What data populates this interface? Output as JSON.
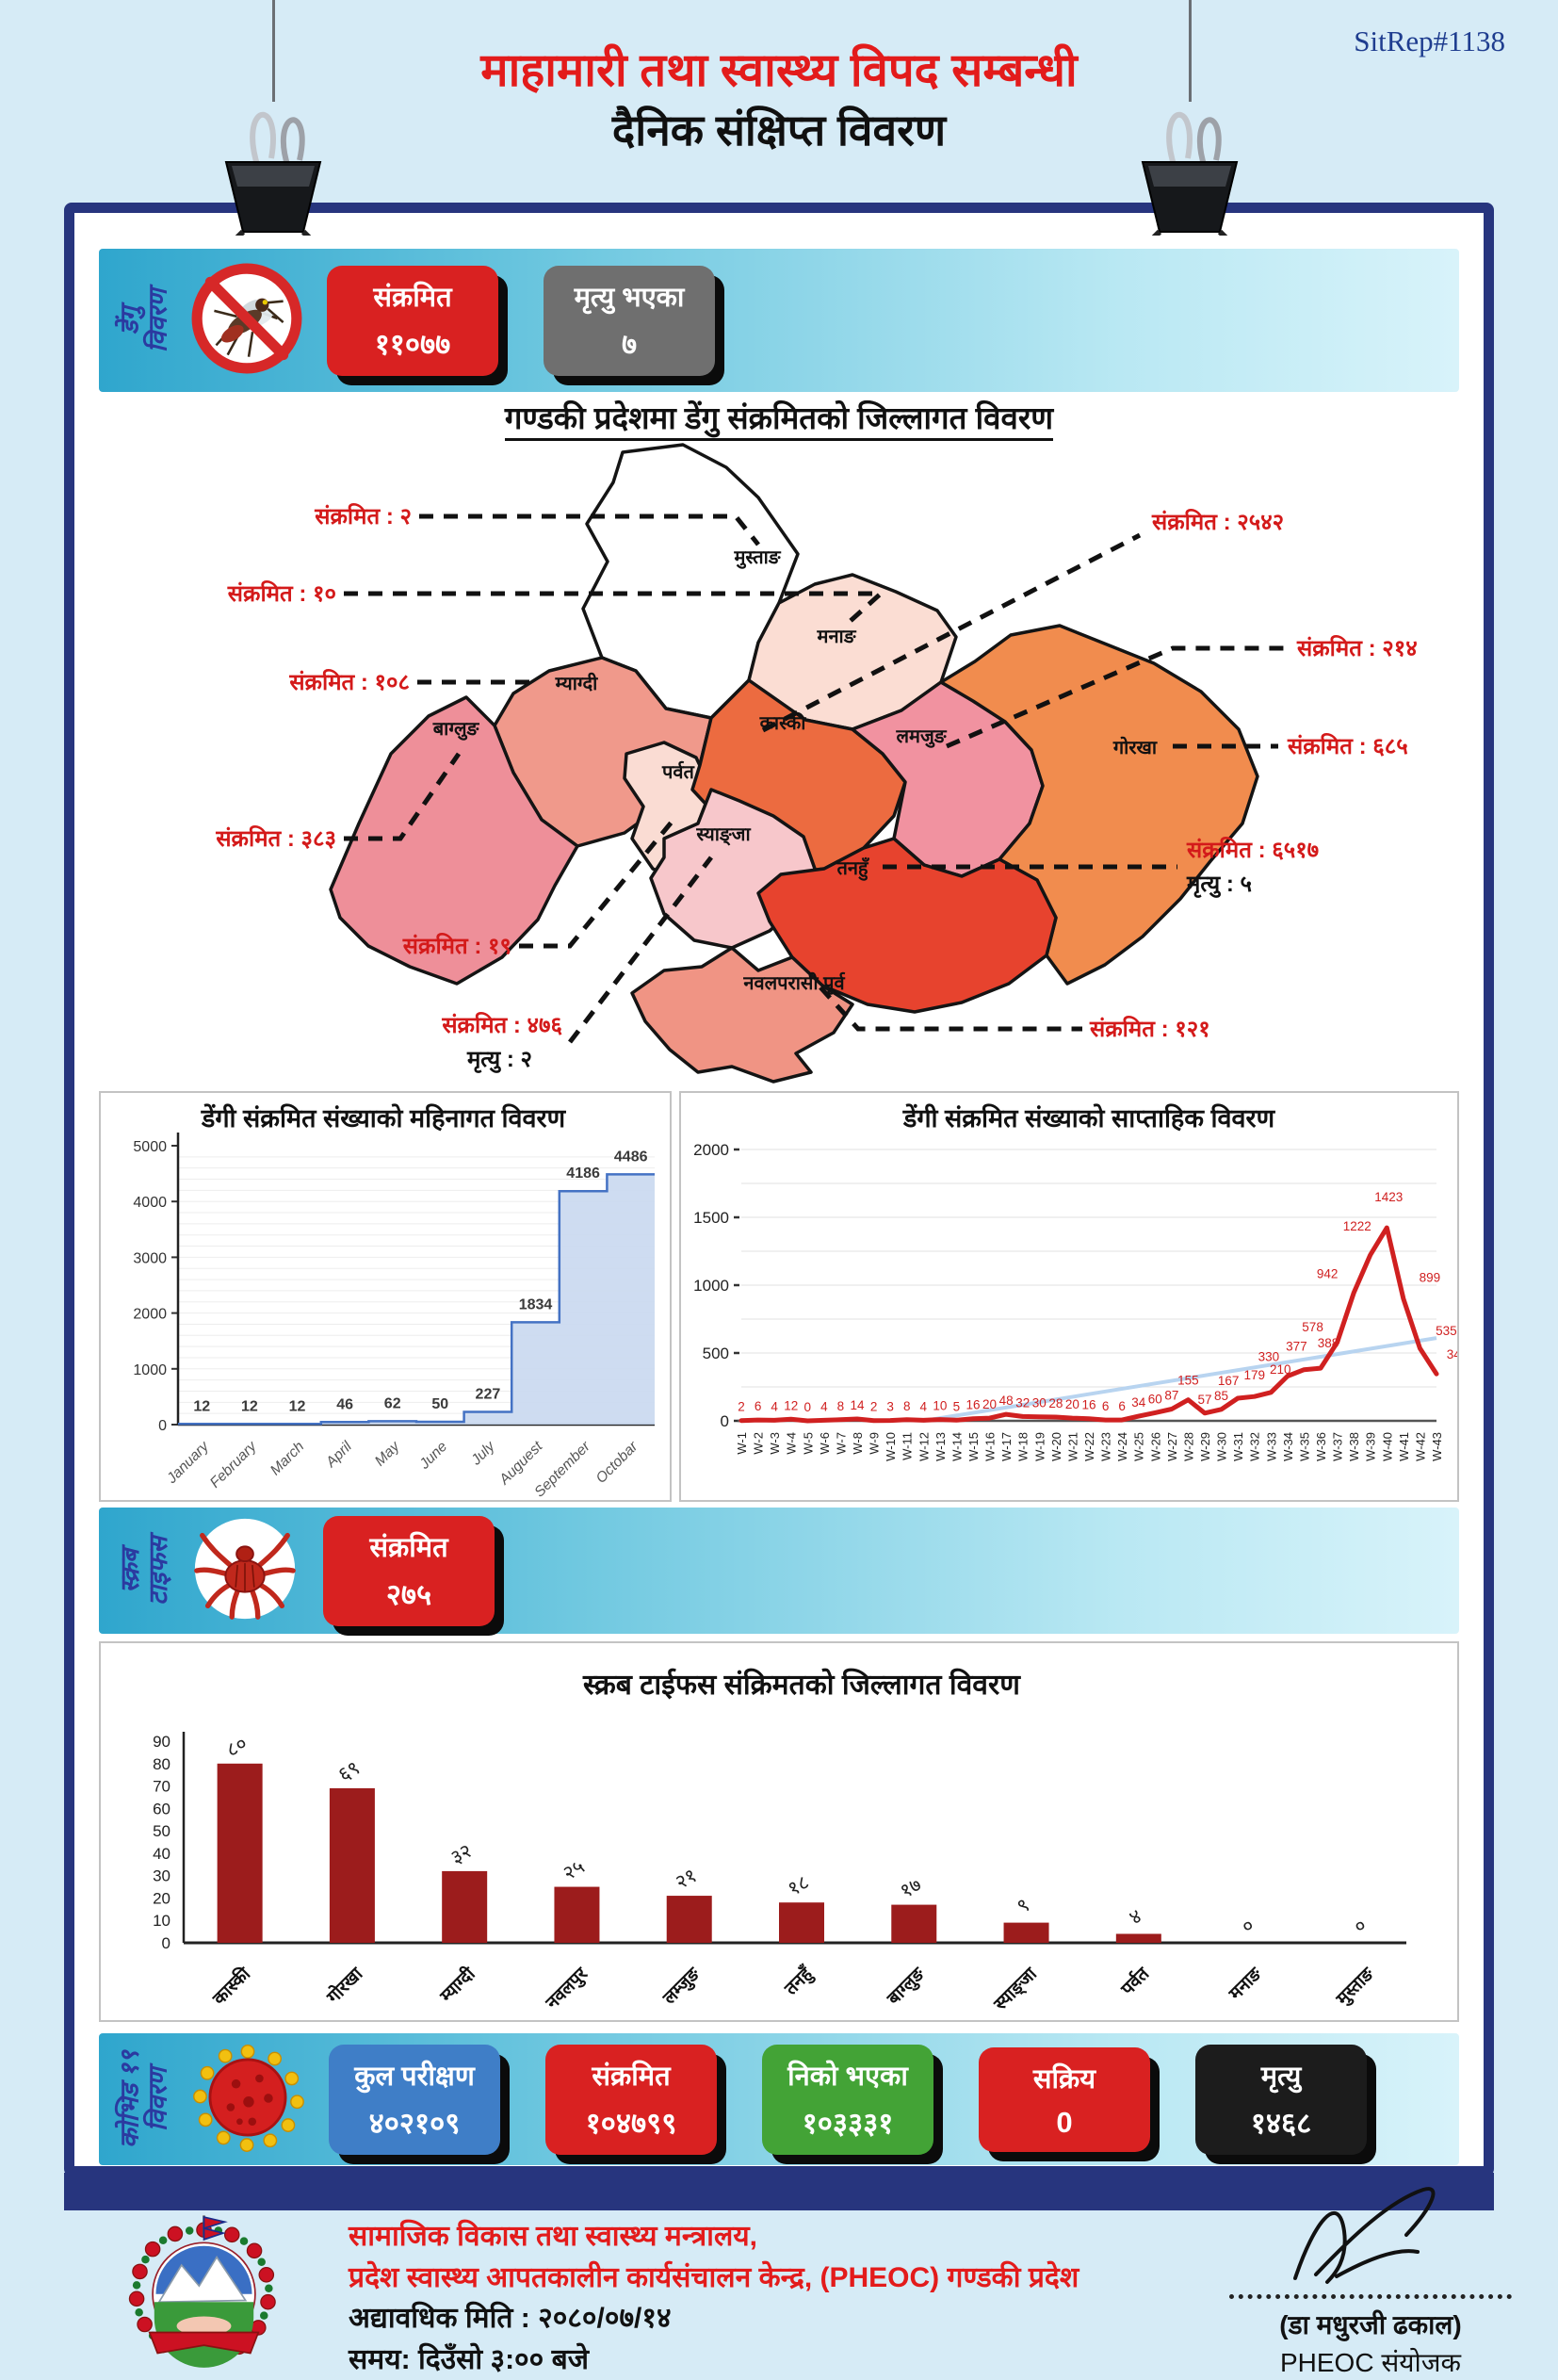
{
  "page": {
    "sitrep_id": "SitRep#1138",
    "title_line1": "माहामारी तथा स्वास्थ्य विपद सम्बन्धी",
    "title_line2": "दैनिक संक्षिप्त विवरण"
  },
  "dengue_section": {
    "side_label_line1": "डेंगु",
    "side_label_line2": "विवरण",
    "stats": [
      {
        "label": "संक्रमित",
        "value": "११०७७",
        "color": "#d92121"
      },
      {
        "label": "मृत्यु भएका",
        "value": "७",
        "color": "#6f6f6f"
      }
    ],
    "map_title": "गण्डकी प्रदेशमा डेंगु संक्रमितको जिल्लागत विवरण"
  },
  "map": {
    "districts": [
      {
        "name": "मुस्ताङ",
        "fill": "#ffffff"
      },
      {
        "name": "मनाङ",
        "fill": "#fbddd3"
      },
      {
        "name": "म्याग्दी",
        "fill": "#f0998b"
      },
      {
        "name": "बाग्लुङ",
        "fill": "#ee8f99"
      },
      {
        "name": "पर्वत",
        "fill": "#fadcd3"
      },
      {
        "name": "कास्की",
        "fill": "#ec6b40"
      },
      {
        "name": "लमजुङ",
        "fill": "#f192a0"
      },
      {
        "name": "गोरखा",
        "fill": "#f18c4e"
      },
      {
        "name": "स्याङ्जा",
        "fill": "#f7c7cb"
      },
      {
        "name": "तनहुँ",
        "fill": "#e7432e"
      },
      {
        "name": "नवलपरासी पूर्व",
        "fill": "#f09484"
      }
    ],
    "callouts_left": [
      {
        "text": "संक्रमित : २"
      },
      {
        "text": "संक्रमित : १०"
      },
      {
        "text": "संक्रमित : १०८"
      },
      {
        "text": "संक्रमित : ३८३"
      },
      {
        "text": "संक्रमित : १९"
      },
      {
        "text": "संक्रमित : ४७६",
        "sub": "मृत्यु : २"
      }
    ],
    "callouts_right": [
      {
        "text": "संक्रमित : २५४२"
      },
      {
        "text": "संक्रमित : २१४"
      },
      {
        "text": "संक्रमित : ६८५"
      },
      {
        "text": "संक्रमित : ६५१७",
        "sub": "मृत्यु : ५"
      },
      {
        "text": "संक्रमित : १२१"
      }
    ]
  },
  "chart_data": [
    {
      "type": "area",
      "title": "डेंगी संक्रमित संख्याको महिनागत विवरण",
      "categories": [
        "January",
        "February",
        "March",
        "April",
        "May",
        "June",
        "July",
        "Auguest",
        "September",
        "Octobar"
      ],
      "values": [
        12,
        12,
        12,
        46,
        62,
        50,
        227,
        1834,
        4186,
        4486
      ],
      "xlabel": "",
      "ylabel": "",
      "ylim": [
        0,
        5000
      ],
      "yticks": [
        0,
        1000,
        2000,
        3000,
        4000,
        5000
      ],
      "grid": true,
      "legend": "none",
      "line_color": "#4472c4",
      "fill_color": "#c9d8ef"
    },
    {
      "type": "line",
      "title": "डेंगी संक्रमित संख्याको साप्ताहिक विवरण",
      "categories": [
        "W-1",
        "W-2",
        "W-3",
        "W-4",
        "W-5",
        "W-6",
        "W-7",
        "W-8",
        "W-9",
        "W-10",
        "W-11",
        "W-12",
        "W-13",
        "W-14",
        "W-15",
        "W-16",
        "W-17",
        "W-18",
        "W-19",
        "W-20",
        "W-21",
        "W-22",
        "W-23",
        "W-24",
        "W-25",
        "W-26",
        "W-27",
        "W-28",
        "W-29",
        "W-30",
        "W-31",
        "W-32",
        "W-33",
        "W-34",
        "W-35",
        "W-36",
        "W-37",
        "W-38",
        "W-39",
        "W-40",
        "W-41",
        "W-42",
        "W-43"
      ],
      "values": [
        2,
        6,
        4,
        12,
        0,
        4,
        8,
        14,
        2,
        3,
        8,
        4,
        10,
        5,
        16,
        20,
        48,
        32,
        30,
        28,
        20,
        16,
        6,
        6,
        34,
        60,
        87,
        155,
        57,
        85,
        167,
        179,
        210,
        330,
        377,
        388,
        578,
        942,
        1222,
        1423,
        899,
        535,
        346
      ],
      "xlabel": "",
      "ylabel": "",
      "ylim": [
        0,
        2000
      ],
      "yticks": [
        0,
        500,
        1000,
        1500,
        2000
      ],
      "grid": true,
      "legend": "none",
      "line_color": "#d02020",
      "trendline": true,
      "trend_color": "#b8d4f0"
    },
    {
      "type": "bar",
      "title": "स्क्रब टाईफस संक्रिमतको जिल्लागत विवरण",
      "categories": [
        "कास्की",
        "गोरखा",
        "म्याग्दी",
        "नवलपुर",
        "लम्जुङ",
        "तनहुँ",
        "बाग्लुङ",
        "स्याङ्जा",
        "पर्वत",
        "मनाङ",
        "मुस्ताङ"
      ],
      "values": [
        80,
        69,
        32,
        25,
        21,
        18,
        17,
        9,
        4,
        0,
        0
      ],
      "value_labels": [
        "८०",
        "६९",
        "३२",
        "२५",
        "२१",
        "१८",
        "१७",
        "९",
        "४",
        "०",
        "०"
      ],
      "xlabel": "",
      "ylabel": "",
      "ylim": [
        0,
        90
      ],
      "yticks": [
        0,
        10,
        20,
        30,
        40,
        50,
        60,
        70,
        80,
        90
      ],
      "grid": false,
      "legend": "none",
      "bar_color": "#9c1c1c"
    }
  ],
  "scrub_section": {
    "side_label_line1": "स्क्रब",
    "side_label_line2": "टाइफस",
    "stats": [
      {
        "label": "संक्रमित",
        "value": "२७५",
        "color": "#d92121"
      }
    ]
  },
  "covid_section": {
    "side_label_line1": "कोभिड १९",
    "side_label_line2": "विवरण",
    "boxes": [
      {
        "label": "कुल परीक्षण",
        "value": "४०२१०९",
        "color": "#3f7ec7"
      },
      {
        "label": "संक्रमित",
        "value": "१०४७९९",
        "color": "#e32222"
      },
      {
        "label": "निको भएका",
        "value": "१०३३३१",
        "color": "#43a336"
      },
      {
        "label": "सक्रिय",
        "value": "0",
        "color": "#e32222"
      },
      {
        "label": "मृत्यु",
        "value": "१४६८",
        "color": "#1c1c1c"
      }
    ]
  },
  "footer": {
    "org_line1": "सामाजिक विकास तथा स्वास्थ्य मन्त्रालय,",
    "org_line2": "प्रदेश स्वास्थ्य आपतकालीन कार्यसंचालन केन्द्र, (PHEOC) गण्डकी प्रदेश",
    "updated_date": "अद्यावधिक मिति : २०८०/०७/१४",
    "updated_time": "समय: दिउँसो ३:०० बजे",
    "signatory_name": "(डा मधुरजी ढकाल)",
    "signatory_title": "PHEOC संयोजक"
  }
}
